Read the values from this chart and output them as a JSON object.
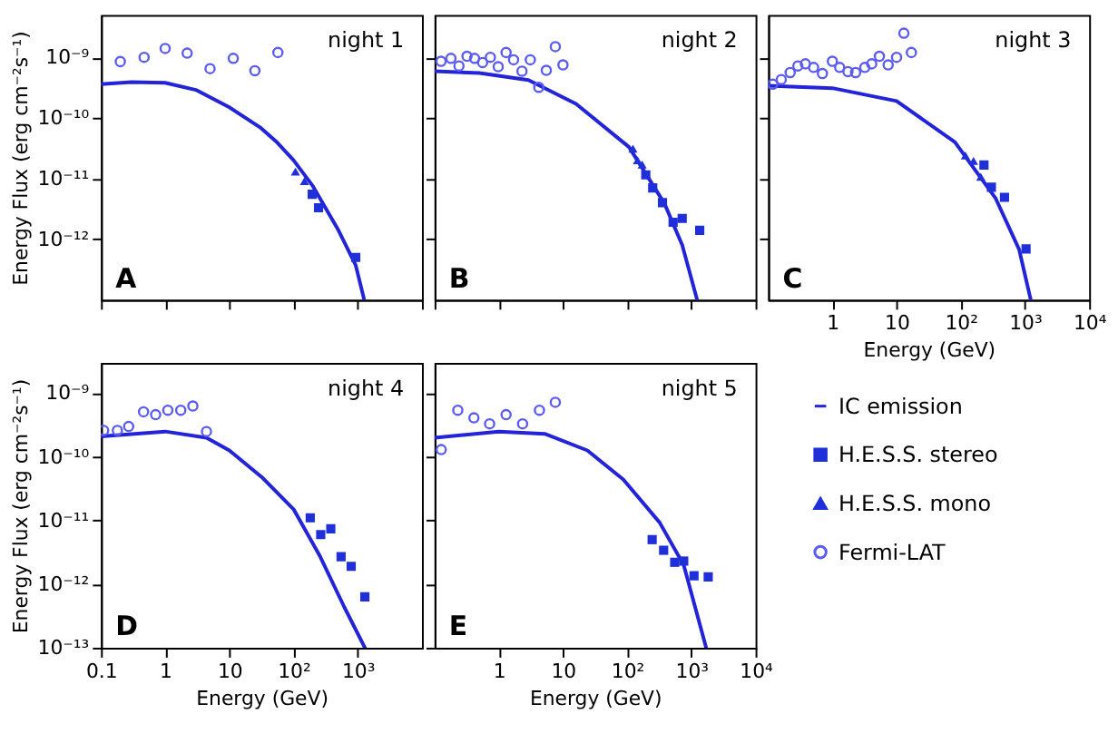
{
  "chart_data": [
    {
      "type": "scatter",
      "log": "xy",
      "ylabel": "Energy Flux (erg cm⁻²s⁻¹)",
      "annotations": [
        "night 1",
        "A"
      ],
      "tick_labels": "y",
      "xlim": [
        0.1,
        10000
      ],
      "ylim": [
        1e-13,
        5e-09
      ],
      "xticks": [
        {
          "value": 0.1,
          "label": null
        },
        {
          "value": 1,
          "label": null
        },
        {
          "value": 10,
          "label": null
        },
        {
          "value": 100,
          "label": null
        },
        {
          "value": 1000,
          "label": null
        },
        {
          "value": 10000,
          "label": null
        }
      ],
      "yticks": [
        {
          "value": 1e-12,
          "label": "10⁻¹²"
        },
        {
          "value": 1e-11,
          "label": "10⁻¹¹"
        },
        {
          "value": 1e-10,
          "label": "10⁻¹⁰"
        },
        {
          "value": 1e-09,
          "label": "10⁻⁹"
        }
      ],
      "series": [
        {
          "type": "line",
          "color": "#2323d9",
          "x": [
            0.1,
            0.3,
            1,
            3,
            10,
            30,
            56,
            100,
            200,
            500,
            930,
            1260
          ],
          "values": [
            3.6e-10,
            3.9e-10,
            3.8e-10,
            2.9e-10,
            1.5e-10,
            7e-11,
            3.9e-11,
            2e-11,
            7.5e-12,
            1.4e-12,
            3.7e-13,
            1e-13
          ]
        },
        {
          "marker": "square",
          "color": "#1f2fd9",
          "x": [
            195,
            245,
            930
          ],
          "values": [
            5.5e-12,
            3.3e-12,
            5e-13
          ]
        },
        {
          "marker": "triangle",
          "color": "#1f2fd9",
          "x": [
            107,
            148
          ],
          "values": [
            1.3e-11,
            9.1e-12
          ]
        },
        {
          "marker": "circle",
          "color": "#5c5cf0",
          "x": [
            0.2,
            0.47,
            1.0,
            2.2,
            5,
            11.5,
            25,
            57
          ],
          "values": [
            8.5e-10,
            1e-09,
            1.4e-09,
            1.17e-09,
            6.5e-10,
            9.6e-10,
            6e-10,
            1.2e-09
          ]
        }
      ]
    },
    {
      "type": "scatter",
      "log": "xy",
      "annotations": [
        "night 2",
        "B"
      ],
      "tick_labels": false,
      "xlim": [
        0.1,
        10000
      ],
      "ylim": [
        1e-13,
        5e-09
      ],
      "xticks": [
        {
          "value": 0.1,
          "label": null
        },
        {
          "value": 1,
          "label": null
        },
        {
          "value": 10,
          "label": null
        },
        {
          "value": 100,
          "label": null
        },
        {
          "value": 1000,
          "label": null
        },
        {
          "value": 10000,
          "label": null
        }
      ],
      "yticks": [
        {
          "value": 1e-12,
          "label": null
        },
        {
          "value": 1e-11,
          "label": null
        },
        {
          "value": 1e-10,
          "label": null
        },
        {
          "value": 1e-09,
          "label": null
        }
      ],
      "series": [
        {
          "type": "line",
          "color": "#2323d9",
          "x": [
            0.1,
            0.5,
            2.9,
            16,
            107,
            380,
            720,
            1230
          ],
          "values": [
            5.9e-10,
            5.5e-10,
            4.2e-10,
            1.7e-10,
            3.3e-11,
            3.9e-12,
            8e-13,
            1e-13
          ]
        },
        {
          "marker": "square",
          "color": "#1f2fd9",
          "x": [
            195,
            250,
            355,
            520,
            720,
            1350
          ],
          "values": [
            1.15e-11,
            7e-12,
            4e-12,
            1.9e-12,
            2.2e-12,
            1.4e-12
          ]
        },
        {
          "marker": "triangle",
          "color": "#1f2fd9",
          "x": [
            123,
            145,
            171
          ],
          "values": [
            3.1e-11,
            2e-11,
            1.7e-11
          ]
        },
        {
          "marker": "circle",
          "color": "#5c5cf0",
          "x": [
            0.126,
            0.18,
            0.24,
            0.32,
            0.42,
            0.56,
            0.74,
            0.98,
            1.3,
            1.7,
            2.3,
            3.1,
            4.2,
            5.5,
            7.6,
            10
          ],
          "values": [
            8.6e-10,
            9.6e-10,
            7.2e-10,
            1.04e-09,
            9.6e-10,
            8.2e-10,
            1e-09,
            7e-10,
            1.2e-09,
            9.1e-10,
            5.9e-10,
            9.1e-10,
            3.2e-10,
            6.1e-10,
            1.5e-09,
            7.5e-10
          ]
        }
      ]
    },
    {
      "type": "scatter",
      "log": "xy",
      "xlabel": "Energy (GeV)",
      "annotations": [
        "night 3",
        "C"
      ],
      "tick_labels": "x",
      "xlim": [
        0.1,
        10000
      ],
      "ylim": [
        1e-13,
        5e-09
      ],
      "xticks": [
        1,
        10,
        {
          "value": 100,
          "label": "10²"
        },
        {
          "value": 1000,
          "label": "10³"
        },
        {
          "value": 10000,
          "label": "10⁴"
        }
      ],
      "yticks": [
        {
          "value": 1e-12,
          "label": null
        },
        {
          "value": 1e-11,
          "label": null
        },
        {
          "value": 1e-10,
          "label": null
        },
        {
          "value": 1e-09,
          "label": null
        }
      ],
      "series": [
        {
          "type": "line",
          "color": "#2323d9",
          "x": [
            0.1,
            1,
            10,
            81,
            350,
            810,
            1230
          ],
          "values": [
            3.4e-10,
            3.1e-10,
            1.9e-10,
            4e-11,
            4.7e-12,
            6.8e-13,
            1e-13
          ]
        },
        {
          "marker": "square",
          "color": "#1f2fd9",
          "x": [
            230,
            300,
            480,
            1040
          ],
          "values": [
            1.67e-11,
            7.2e-12,
            4.9e-12,
            6.9e-13
          ]
        },
        {
          "marker": "triangle",
          "color": "#1f2fd9",
          "x": [
            118,
            158,
            205
          ],
          "values": [
            2.4e-11,
            1.95e-11,
            1.07e-11
          ]
        },
        {
          "marker": "circle",
          "color": "#5c5cf0",
          "x": [
            0.118,
            0.16,
            0.22,
            0.29,
            0.38,
            0.51,
            0.7,
            1.0,
            1.3,
            1.75,
            2.3,
            3.2,
            4.1,
            5.4,
            7.4,
            10,
            13,
            17
          ],
          "values": [
            3.6e-10,
            4.3e-10,
            5.6e-10,
            7.2e-10,
            7.8e-10,
            6.8e-10,
            5.4e-10,
            8.6e-10,
            6.8e-10,
            5.8e-10,
            5.6e-10,
            6.8e-10,
            7.8e-10,
            1.04e-09,
            7.5e-10,
            1e-09,
            2.5e-09,
            1.2e-09
          ]
        }
      ]
    },
    {
      "type": "scatter",
      "log": "xy",
      "xlabel": "Energy (GeV)",
      "ylabel": "Energy Flux (erg cm⁻²s⁻¹)",
      "annotations": [
        "night 4",
        "D"
      ],
      "xlim": [
        0.1,
        10000
      ],
      "ylim": [
        1e-13,
        3e-09
      ],
      "xticks": [
        0.1,
        1,
        10,
        {
          "value": 100,
          "label": "10²"
        },
        {
          "value": 1000,
          "label": "10³"
        }
      ],
      "yticks": [
        {
          "value": 1e-13,
          "label": "10⁻¹³"
        },
        {
          "value": 1e-12,
          "label": "10⁻¹²"
        },
        {
          "value": 1e-11,
          "label": "10⁻¹¹"
        },
        {
          "value": 1e-10,
          "label": "10⁻¹⁰"
        },
        {
          "value": 1e-09,
          "label": "10⁻⁹"
        }
      ],
      "series": [
        {
          "type": "line",
          "color": "#2323d9",
          "x": [
            0.1,
            1,
            4.4,
            10,
            32,
            100,
            260,
            620,
            1290
          ],
          "values": [
            2.1e-10,
            2.5e-10,
            2e-10,
            1.26e-10,
            4.8e-11,
            1.5e-11,
            2.7e-12,
            4.3e-13,
            1e-13
          ]
        },
        {
          "marker": "square",
          "color": "#1f2fd9",
          "x": [
            182,
            265,
            380,
            550,
            790,
            1290
          ],
          "values": [
            1.1e-11,
            6e-12,
            7.4e-12,
            2.7e-12,
            1.9e-12,
            6.3e-13
          ]
        },
        {
          "marker": "circle",
          "color": "#5c5cf0",
          "x": [
            0.11,
            0.18,
            0.27,
            0.46,
            0.71,
            1.1,
            1.75,
            2.7,
            4.4
          ],
          "values": [
            2.6e-10,
            2.6e-10,
            3e-10,
            5.1e-10,
            4.6e-10,
            5.4e-10,
            5.4e-10,
            6.3e-10,
            2.5e-10
          ]
        }
      ]
    },
    {
      "type": "scatter",
      "log": "xy",
      "xlabel": "Energy (GeV)",
      "annotations": [
        "night 5",
        "E"
      ],
      "tick_labels": "x",
      "legend": "right",
      "xlim": [
        0.1,
        10000
      ],
      "ylim": [
        1e-13,
        3e-09
      ],
      "xticks": [
        1,
        10,
        {
          "value": 100,
          "label": "10²"
        },
        {
          "value": 1000,
          "label": "10³"
        },
        {
          "value": 10000,
          "label": "10⁴"
        }
      ],
      "yticks": [
        {
          "value": 1e-13,
          "label": null
        },
        {
          "value": 1e-12,
          "label": null
        },
        {
          "value": 1e-11,
          "label": null
        },
        {
          "value": 1e-10,
          "label": null
        },
        {
          "value": 1e-09,
          "label": null
        }
      ],
      "series": [
        {
          "type": "line",
          "name": "IC emission",
          "color": "#2323d9",
          "x": [
            0.1,
            1,
            5.2,
            24,
            87,
            320,
            760,
            1700
          ],
          "values": [
            2e-10,
            2.5e-10,
            2.3e-10,
            1.26e-10,
            4.4e-11,
            9.3e-12,
            2e-12,
            1e-13
          ]
        },
        {
          "marker": "square",
          "name": "H.E.S.S. stereo",
          "color": "#1f2fd9",
          "x": [
            245,
            370,
            550,
            760,
            1100,
            1830
          ],
          "values": [
            5e-12,
            3.4e-12,
            2.2e-12,
            2.3e-12,
            1.35e-12,
            1.3e-12
          ]
        },
        {
          "marker": "triangle",
          "name": "H.E.S.S. mono",
          "color": "#1f2fd9"
        },
        {
          "marker": "circle",
          "name": "Fermi-LAT",
          "color": "#5c5cf0",
          "x": [
            0.127,
            0.23,
            0.41,
            0.72,
            1.3,
            2.35,
            4.3,
            7.6
          ],
          "values": [
            1.3e-10,
            5.4e-10,
            4.1e-10,
            3.3e-10,
            4.6e-10,
            3.3e-10,
            5.4e-10,
            7.2e-10
          ]
        }
      ]
    }
  ]
}
